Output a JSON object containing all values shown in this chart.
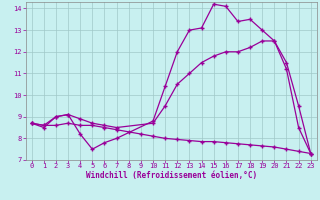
{
  "xlabel": "Windchill (Refroidissement éolien,°C)",
  "background_color": "#c8f0f0",
  "line_color": "#990099",
  "grid_color": "#a0c8c8",
  "xlim": [
    -0.5,
    23.5
  ],
  "ylim": [
    7,
    14.3
  ],
  "xticks": [
    0,
    1,
    2,
    3,
    4,
    5,
    6,
    7,
    8,
    9,
    10,
    11,
    12,
    13,
    14,
    15,
    16,
    17,
    18,
    19,
    20,
    21,
    22,
    23
  ],
  "yticks": [
    7,
    8,
    9,
    10,
    11,
    12,
    13,
    14
  ],
  "line1_x": [
    0,
    1,
    2,
    3,
    4,
    5,
    6,
    7,
    10,
    11,
    12,
    13,
    14,
    15,
    16,
    17,
    18,
    19,
    20,
    21,
    22,
    23
  ],
  "line1_y": [
    8.7,
    8.6,
    9.0,
    9.1,
    8.2,
    7.5,
    7.8,
    8.0,
    8.8,
    10.4,
    12.0,
    13.0,
    13.1,
    14.2,
    14.1,
    13.4,
    13.5,
    13.0,
    12.5,
    11.2,
    8.5,
    7.3
  ],
  "line2_x": [
    0,
    1,
    2,
    3,
    4,
    5,
    6,
    7,
    10,
    11,
    12,
    13,
    14,
    15,
    16,
    17,
    18,
    19,
    20,
    21,
    22,
    23
  ],
  "line2_y": [
    8.7,
    8.5,
    9.0,
    9.1,
    8.9,
    8.7,
    8.6,
    8.5,
    8.7,
    9.5,
    10.5,
    11.0,
    11.5,
    11.8,
    12.0,
    12.0,
    12.2,
    12.5,
    12.5,
    11.5,
    9.5,
    7.3
  ],
  "line3_x": [
    0,
    1,
    2,
    3,
    4,
    5,
    6,
    7,
    8,
    9,
    10,
    11,
    12,
    13,
    14,
    15,
    16,
    17,
    18,
    19,
    20,
    21,
    22,
    23
  ],
  "line3_y": [
    8.7,
    8.6,
    8.6,
    8.7,
    8.6,
    8.6,
    8.5,
    8.4,
    8.3,
    8.2,
    8.1,
    8.0,
    7.95,
    7.9,
    7.85,
    7.85,
    7.8,
    7.75,
    7.7,
    7.65,
    7.6,
    7.5,
    7.4,
    7.3
  ]
}
